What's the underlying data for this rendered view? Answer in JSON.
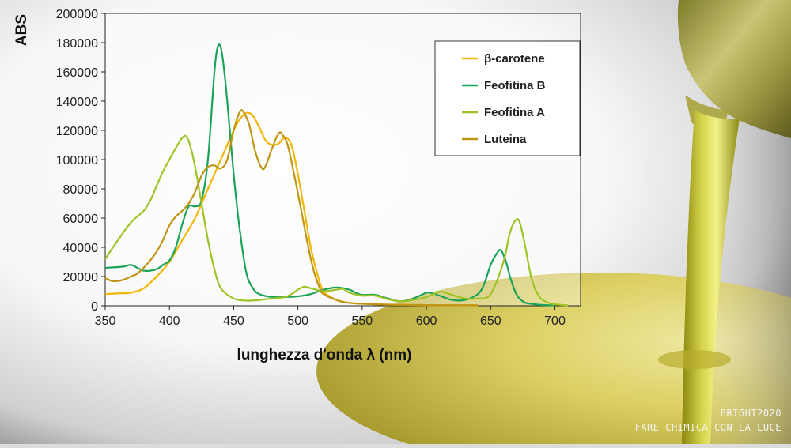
{
  "watermark": {
    "line1": "BRIGHT2020",
    "line2": "FARE CHIMICA CON LA LUCE"
  },
  "chart_data": {
    "type": "line",
    "ylabel": "ABS",
    "xlabel": "lunghezza d'onda λ (nm)",
    "xlim": [
      350,
      720
    ],
    "ylim": [
      0,
      200000
    ],
    "x_ticks": [
      350,
      400,
      450,
      500,
      550,
      600,
      650,
      700
    ],
    "y_ticks": [
      0,
      20000,
      40000,
      60000,
      80000,
      100000,
      120000,
      140000,
      160000,
      180000,
      200000
    ],
    "grid": false,
    "legend_position": "top-right",
    "series": [
      {
        "name": "β-carotene",
        "color": "#F2B705",
        "points": [
          [
            350,
            8000
          ],
          [
            360,
            8500
          ],
          [
            370,
            9000
          ],
          [
            380,
            12000
          ],
          [
            390,
            20000
          ],
          [
            400,
            30000
          ],
          [
            410,
            45000
          ],
          [
            420,
            60000
          ],
          [
            430,
            80000
          ],
          [
            440,
            100000
          ],
          [
            450,
            120000
          ],
          [
            455,
            128000
          ],
          [
            460,
            132000
          ],
          [
            465,
            130000
          ],
          [
            470,
            122000
          ],
          [
            475,
            113000
          ],
          [
            480,
            110000
          ],
          [
            485,
            111000
          ],
          [
            490,
            115000
          ],
          [
            495,
            110000
          ],
          [
            500,
            90000
          ],
          [
            505,
            65000
          ],
          [
            510,
            40000
          ],
          [
            515,
            22000
          ],
          [
            520,
            10000
          ],
          [
            530,
            4000
          ],
          [
            540,
            2000
          ],
          [
            560,
            1000
          ],
          [
            600,
            500
          ],
          [
            640,
            300
          ]
        ]
      },
      {
        "name": "Feofitina B",
        "color": "#1BA35A",
        "points": [
          [
            350,
            26000
          ],
          [
            360,
            26500
          ],
          [
            365,
            27000
          ],
          [
            370,
            28000
          ],
          [
            375,
            26000
          ],
          [
            380,
            24000
          ],
          [
            385,
            24000
          ],
          [
            390,
            25000
          ],
          [
            395,
            28000
          ],
          [
            400,
            31000
          ],
          [
            405,
            40000
          ],
          [
            410,
            56000
          ],
          [
            415,
            68000
          ],
          [
            420,
            68000
          ],
          [
            425,
            72000
          ],
          [
            430,
            100000
          ],
          [
            435,
            160000
          ],
          [
            438,
            178000
          ],
          [
            441,
            172000
          ],
          [
            445,
            140000
          ],
          [
            450,
            90000
          ],
          [
            455,
            50000
          ],
          [
            460,
            22000
          ],
          [
            465,
            12000
          ],
          [
            470,
            8000
          ],
          [
            480,
            6000
          ],
          [
            490,
            6000
          ],
          [
            500,
            6500
          ],
          [
            510,
            8000
          ],
          [
            520,
            11000
          ],
          [
            530,
            12500
          ],
          [
            540,
            11000
          ],
          [
            545,
            9000
          ],
          [
            550,
            7500
          ],
          [
            560,
            7500
          ],
          [
            570,
            5000
          ],
          [
            580,
            3000
          ],
          [
            590,
            5000
          ],
          [
            600,
            9000
          ],
          [
            605,
            8500
          ],
          [
            610,
            7000
          ],
          [
            620,
            4000
          ],
          [
            630,
            4000
          ],
          [
            640,
            8000
          ],
          [
            645,
            15000
          ],
          [
            650,
            28000
          ],
          [
            655,
            36000
          ],
          [
            658,
            38000
          ],
          [
            662,
            30000
          ],
          [
            665,
            20000
          ],
          [
            670,
            8000
          ],
          [
            675,
            3000
          ],
          [
            680,
            1500
          ],
          [
            690,
            600
          ],
          [
            700,
            300
          ]
        ]
      },
      {
        "name": "Feofitina A",
        "color": "#9DC324",
        "points": [
          [
            350,
            32000
          ],
          [
            360,
            45000
          ],
          [
            370,
            57000
          ],
          [
            380,
            65000
          ],
          [
            385,
            72000
          ],
          [
            390,
            82000
          ],
          [
            395,
            92000
          ],
          [
            400,
            100000
          ],
          [
            405,
            108000
          ],
          [
            410,
            115000
          ],
          [
            413,
            116000
          ],
          [
            416,
            110000
          ],
          [
            420,
            95000
          ],
          [
            425,
            70000
          ],
          [
            430,
            45000
          ],
          [
            435,
            25000
          ],
          [
            440,
            12000
          ],
          [
            450,
            5000
          ],
          [
            460,
            3500
          ],
          [
            470,
            4000
          ],
          [
            480,
            5000
          ],
          [
            490,
            6000
          ],
          [
            495,
            8000
          ],
          [
            500,
            11000
          ],
          [
            505,
            13000
          ],
          [
            510,
            12000
          ],
          [
            520,
            10000
          ],
          [
            530,
            11000
          ],
          [
            535,
            11500
          ],
          [
            540,
            9000
          ],
          [
            550,
            7000
          ],
          [
            560,
            7000
          ],
          [
            570,
            4500
          ],
          [
            580,
            3000
          ],
          [
            590,
            4000
          ],
          [
            600,
            6000
          ],
          [
            610,
            9500
          ],
          [
            615,
            9000
          ],
          [
            620,
            7500
          ],
          [
            630,
            5000
          ],
          [
            640,
            5000
          ],
          [
            650,
            8000
          ],
          [
            660,
            30000
          ],
          [
            665,
            50000
          ],
          [
            670,
            59000
          ],
          [
            673,
            56000
          ],
          [
            677,
            40000
          ],
          [
            682,
            18000
          ],
          [
            688,
            6000
          ],
          [
            695,
            2000
          ],
          [
            700,
            1000
          ],
          [
            710,
            300
          ]
        ]
      },
      {
        "name": "Luteina",
        "color": "#C09515",
        "points": [
          [
            350,
            19000
          ],
          [
            355,
            17000
          ],
          [
            360,
            17000
          ],
          [
            365,
            18000
          ],
          [
            370,
            20000
          ],
          [
            375,
            22000
          ],
          [
            380,
            26000
          ],
          [
            385,
            31000
          ],
          [
            390,
            37000
          ],
          [
            395,
            45000
          ],
          [
            400,
            55000
          ],
          [
            405,
            61000
          ],
          [
            410,
            65000
          ],
          [
            415,
            70000
          ],
          [
            420,
            78000
          ],
          [
            425,
            89000
          ],
          [
            430,
            95000
          ],
          [
            435,
            96000
          ],
          [
            440,
            94000
          ],
          [
            445,
            100000
          ],
          [
            450,
            120000
          ],
          [
            455,
            133000
          ],
          [
            458,
            132000
          ],
          [
            462,
            124000
          ],
          [
            467,
            105000
          ],
          [
            472,
            94000
          ],
          [
            475,
            96000
          ],
          [
            480,
            108000
          ],
          [
            485,
            118000
          ],
          [
            488,
            117000
          ],
          [
            492,
            110000
          ],
          [
            497,
            90000
          ],
          [
            502,
            68000
          ],
          [
            507,
            45000
          ],
          [
            512,
            25000
          ],
          [
            517,
            12000
          ],
          [
            520,
            8000
          ],
          [
            530,
            4000
          ],
          [
            540,
            2000
          ],
          [
            560,
            1000
          ],
          [
            600,
            500
          ],
          [
            640,
            300
          ]
        ]
      }
    ]
  }
}
